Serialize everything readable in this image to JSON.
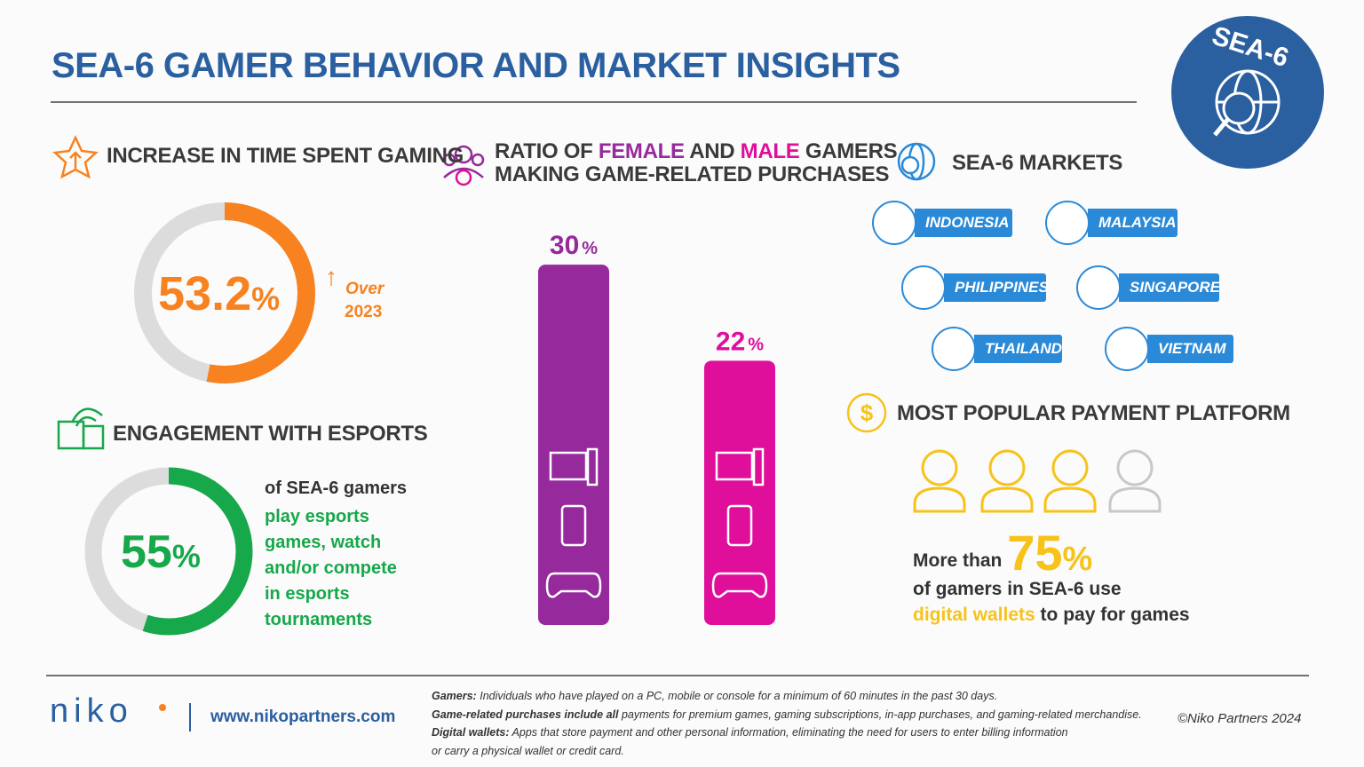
{
  "header": {
    "title": "SEA-6 GAMER BEHAVIOR AND MARKET INSIGHTS",
    "badge": "SEA-6"
  },
  "time_spent": {
    "title": "INCREASE IN TIME SPENT GAMING",
    "value": 53.2,
    "unit": "%",
    "note_line1": "Over",
    "note_line2": "2023",
    "color": "#f7821f"
  },
  "esports": {
    "title": "ENGAGEMENT WITH ESPORTS",
    "value": 55,
    "unit": "%",
    "color": "#16a84a",
    "lead": "of SEA-6 gamers",
    "highlight_lines": [
      "play esports",
      "games, watch",
      "and/or compete",
      "in esports",
      "tournaments"
    ]
  },
  "purchases": {
    "title_start": "RATIO OF ",
    "female": "FEMALE",
    "title_mid": " AND ",
    "male": "MALE",
    "title_end": " GAMERS",
    "title_line2": "MAKING GAME-RELATED PURCHASES",
    "bars": [
      {
        "value": 30,
        "unit": "%",
        "color": "#962a9c"
      },
      {
        "value": 22,
        "unit": "%",
        "color": "#df0f9c"
      }
    ]
  },
  "markets": {
    "title": "SEA-6 MARKETS",
    "countries": [
      "INDONESIA",
      "MALAYSIA",
      "PHILIPPINES",
      "SINGAPORE",
      "THAILAND",
      "VIETNAM"
    ]
  },
  "payment": {
    "title": "MOST POPULAR PAYMENT PLATFORM",
    "prefix": "More than",
    "value": 75,
    "unit": "%",
    "line2": "of gamers in SEA-6 use",
    "highlight": "digital wallets",
    "suffix": "to pay for games",
    "color": "#f7c21a"
  },
  "footer": {
    "logo": "niko",
    "url": "www.nikopartners.com",
    "copyright": "©Niko Partners 2024",
    "notes": [
      {
        "term": "Gamers:",
        "text": "Individuals who have played on a PC, mobile or console for a minimum of 60 minutes in the past 30 days."
      },
      {
        "term": "Game-related purchases include all",
        "text": "payments for premium games, gaming subscriptions, in-app purchases, and gaming-related merchandise."
      },
      {
        "term": "Digital wallets:",
        "text": "Apps that store payment and other personal information, eliminating the need for users to  enter billing information"
      }
    ],
    "note_continuation": "or carry a physical wallet or credit card."
  }
}
